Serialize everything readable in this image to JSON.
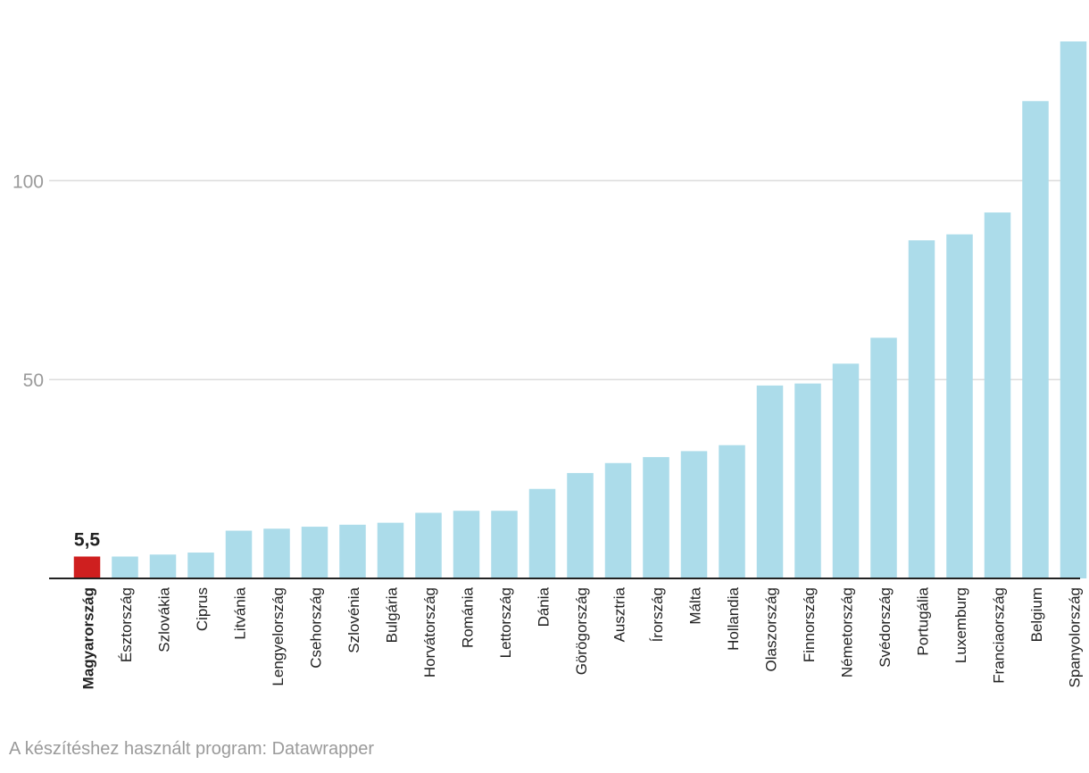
{
  "chart_data": {
    "type": "bar",
    "categories": [
      "Magyarország",
      "Észtország",
      "Szlovákia",
      "Ciprus",
      "Litvánia",
      "Lengyelország",
      "Csehország",
      "Szlovénia",
      "Bulgária",
      "Horvátország",
      "Románia",
      "Lettország",
      "Dánia",
      "Görögország",
      "Ausztria",
      "Írország",
      "Málta",
      "Hollandia",
      "Olaszország",
      "Finnország",
      "Németország",
      "Svédország",
      "Portugália",
      "Luxemburg",
      "Franciaország",
      "Belgium",
      "Spanyolország"
    ],
    "values": [
      5.5,
      5.5,
      6,
      6.5,
      12,
      12.5,
      13,
      13.5,
      14,
      16.5,
      17,
      17,
      22.5,
      26.5,
      29,
      30.5,
      32,
      33.5,
      48.5,
      49,
      54,
      60.5,
      85,
      86.5,
      92,
      120,
      135
    ],
    "highlight_index": 0,
    "highlight_label": "5,5",
    "ylim": [
      0,
      135
    ],
    "yticks": [
      "50",
      "100"
    ],
    "grid": true,
    "colors": {
      "bar": "#acdcea",
      "highlight": "#cf1f1f",
      "grid": "#dcdcdc",
      "axis": "#222222",
      "tick_text": "#9a9a9a",
      "label_text": "#222222"
    }
  },
  "footer": {
    "credit": "A készítéshez használt program: Datawrapper"
  }
}
